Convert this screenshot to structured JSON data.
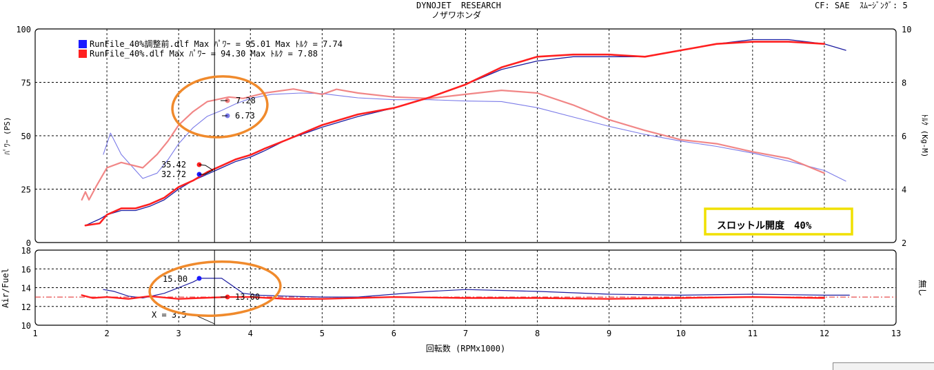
{
  "header": {
    "title_line1": "DYNOJET  RESEARCH",
    "title_line2": "ノザワホンダ",
    "cf_info": "CF: SAE  ｽﾑｰｼﾞﾝｸﾞ: 5"
  },
  "colors": {
    "run_before": "#1a1aff",
    "run_after": "#ff2020",
    "power_before": "#7a7ae8",
    "power_after": "#f08080",
    "highlight_box": "#f0e000",
    "ellipse": "#f08a2c",
    "afr_target": "#e02020"
  },
  "chart_data": {
    "type": "line",
    "x_axis": {
      "label": "回転数 (RPMx1000)",
      "range": [
        1,
        13
      ],
      "ticks": [
        "1",
        "2",
        "3",
        "4",
        "5",
        "6",
        "7",
        "8",
        "9",
        "10",
        "11",
        "12",
        "13"
      ]
    },
    "upper_panel": {
      "y_left": {
        "label": "ﾊﾟﾜｰ (PS)",
        "range": [
          0,
          100
        ],
        "ticks": [
          "0",
          "25",
          "50",
          "75",
          "100"
        ]
      },
      "y_right": {
        "label": "ﾄﾙｸ (Kg-M)",
        "range": [
          2,
          10
        ],
        "ticks": [
          "2",
          "4",
          "6",
          "8",
          "10"
        ]
      },
      "legend": [
        {
          "name": "RunFile_40%調整前.dlf  Max ﾊﾟﾜｰ = 95.01   Max ﾄﾙｸ = 7.74",
          "color": "#1a1aff"
        },
        {
          "name": "RunFile_40%.dlf Max ﾊﾟﾜｰ = 94.30  Max ﾄﾙｸ = 7.88",
          "color": "#ff2020"
        }
      ],
      "annotation_box": "スロットル開度　40%",
      "series": [
        {
          "key": "power_before",
          "axis": "left",
          "x": [
            1.7,
            1.9,
            2.0,
            2.2,
            2.4,
            2.6,
            2.8,
            3.0,
            3.2,
            3.4,
            3.6,
            3.8,
            4.0,
            4.2,
            4.5,
            5.0,
            5.5,
            6.0,
            6.5,
            7.0,
            7.5,
            8.0,
            8.5,
            9.0,
            9.5,
            10.0,
            10.5,
            11.0,
            11.5,
            12.0,
            12.3
          ],
          "y": [
            8,
            11,
            13,
            15,
            15,
            17,
            20,
            25,
            29,
            32,
            35,
            38,
            40,
            43,
            48,
            54,
            59,
            63,
            68,
            74,
            81,
            85,
            87,
            87,
            87,
            90,
            93,
            95,
            95,
            93,
            90
          ]
        },
        {
          "key": "power_after",
          "axis": "left",
          "x": [
            1.7,
            1.9,
            2.0,
            2.2,
            2.4,
            2.6,
            2.8,
            3.0,
            3.2,
            3.4,
            3.6,
            3.8,
            4.0,
            4.2,
            4.5,
            5.0,
            5.5,
            6.0,
            6.5,
            7.0,
            7.5,
            8.0,
            8.5,
            9.0,
            9.5,
            10.0,
            10.5,
            11.0,
            11.5,
            12.0
          ],
          "y": [
            8,
            9,
            13,
            16,
            16,
            18,
            21,
            26,
            29,
            33,
            36,
            39,
            41,
            44,
            48,
            55,
            60,
            63,
            68,
            74,
            82,
            87,
            88,
            88,
            87,
            90,
            93,
            94,
            94,
            93
          ]
        },
        {
          "key": "torque_before",
          "axis": "right",
          "x": [
            1.95,
            2.05,
            2.2,
            2.5,
            2.7,
            2.85,
            3.0,
            3.2,
            3.4,
            3.6,
            3.8,
            4.0,
            4.3,
            4.7,
            5.0,
            5.5,
            6.0,
            6.5,
            7.0,
            7.5,
            8.0,
            8.5,
            9.0,
            9.5,
            10.0,
            10.5,
            11.0,
            11.5,
            12.0,
            12.3
          ],
          "y": [
            5.3,
            6.1,
            5.3,
            4.4,
            4.6,
            5.1,
            5.7,
            6.3,
            6.73,
            6.95,
            7.2,
            7.4,
            7.55,
            7.6,
            7.58,
            7.42,
            7.35,
            7.35,
            7.3,
            7.28,
            7.05,
            6.7,
            6.35,
            6.05,
            5.8,
            5.6,
            5.35,
            5.05,
            4.7,
            4.3
          ]
        },
        {
          "key": "torque_after",
          "axis": "right",
          "x": [
            1.65,
            1.7,
            1.75,
            1.85,
            2.0,
            2.2,
            2.5,
            2.7,
            2.85,
            3.0,
            3.2,
            3.4,
            3.7,
            3.9,
            4.2,
            4.6,
            5.0,
            5.2,
            5.5,
            6.0,
            6.5,
            7.0,
            7.5,
            8.0,
            8.5,
            9.0,
            9.5,
            10.0,
            10.5,
            11.0,
            11.5,
            12.0
          ],
          "y": [
            3.6,
            3.9,
            3.6,
            4.1,
            4.8,
            5.0,
            4.8,
            5.3,
            5.8,
            6.4,
            6.9,
            7.28,
            7.45,
            7.4,
            7.6,
            7.75,
            7.55,
            7.74,
            7.6,
            7.45,
            7.4,
            7.55,
            7.7,
            7.6,
            7.15,
            6.6,
            6.2,
            5.85,
            5.7,
            5.4,
            5.15,
            4.6
          ]
        }
      ],
      "cursor_labels": {
        "torque_after": "7.28",
        "torque_before": "6.73",
        "power_after": "35.42",
        "power_before": "32.72"
      }
    },
    "lower_panel": {
      "y": {
        "label": "Air/Fuel",
        "range": [
          10,
          18
        ],
        "ticks": [
          "10",
          "12",
          "14",
          "16",
          "18"
        ]
      },
      "y_right_label": "無し",
      "target": 13.0,
      "series": [
        {
          "key": "afr_before",
          "x": [
            1.95,
            2.1,
            2.3,
            2.5,
            2.8,
            3.0,
            3.2,
            3.3,
            3.45,
            3.6,
            3.75,
            3.9,
            4.1,
            4.5,
            5.0,
            5.5,
            6.0,
            6.5,
            7.0,
            8.0,
            9.0,
            10.0,
            11.0,
            12.0,
            12.35
          ],
          "y": [
            13.8,
            13.6,
            13.1,
            12.9,
            13.4,
            14.0,
            14.6,
            15.0,
            15.0,
            15.0,
            14.2,
            13.4,
            13.2,
            13.1,
            13.0,
            13.0,
            13.3,
            13.6,
            13.8,
            13.6,
            13.3,
            13.2,
            13.3,
            13.2,
            13.2
          ]
        },
        {
          "key": "afr_after",
          "x": [
            1.65,
            1.8,
            2.0,
            2.3,
            2.6,
            3.0,
            3.3,
            3.7,
            4.0,
            4.5,
            5.0,
            6.0,
            7.0,
            8.0,
            9.0,
            10.0,
            11.0,
            12.0
          ],
          "y": [
            13.2,
            12.9,
            13.0,
            12.8,
            13.1,
            12.8,
            12.9,
            13.0,
            13.0,
            12.8,
            12.8,
            13.0,
            12.9,
            12.9,
            12.8,
            12.9,
            13.0,
            12.9
          ]
        }
      ],
      "cursor_labels": {
        "afr_before": "15.00",
        "afr_after": "13.00"
      }
    },
    "cursor_x": 3.5,
    "cursor_text": "X = 3.5",
    "grid": true
  }
}
